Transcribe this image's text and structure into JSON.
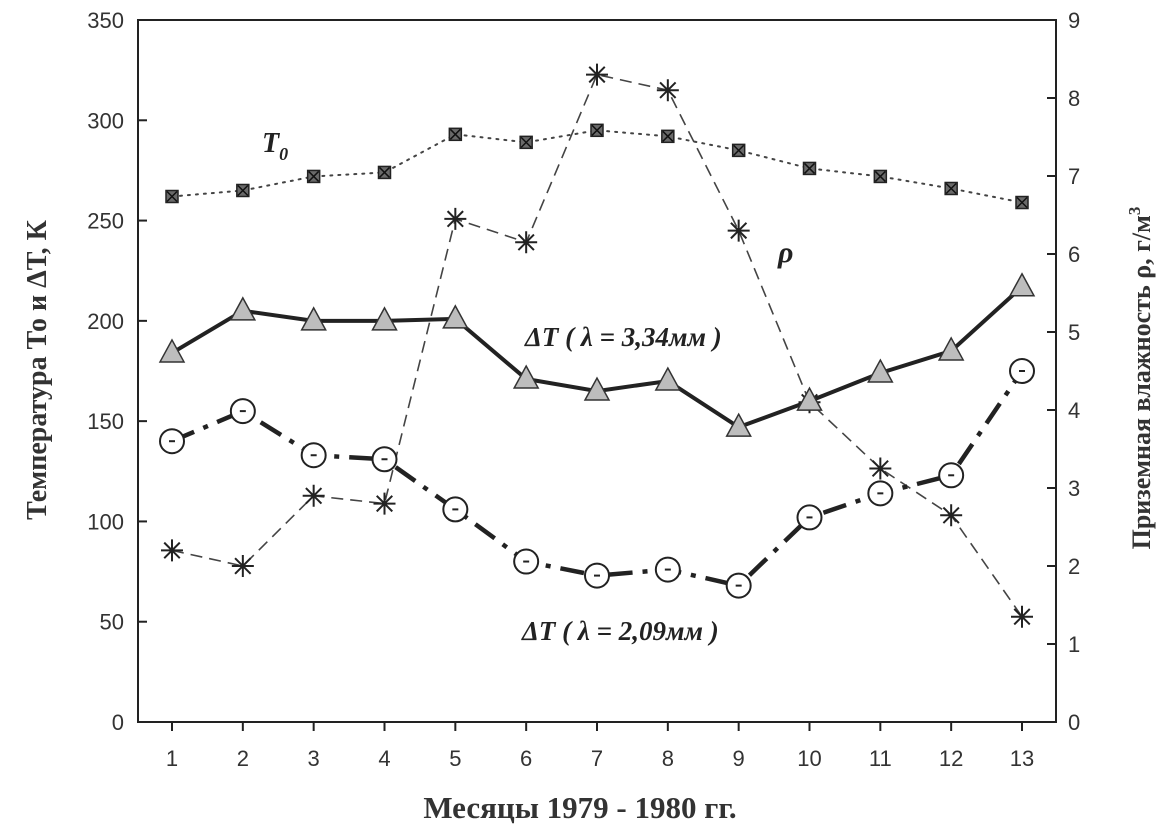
{
  "chart_data": {
    "type": "line",
    "title": "",
    "xlabel": "Месяцы 1979 - 1980 гг.",
    "ylabel_left": "Температура То и  ΔТ, К",
    "ylabel_right_main": "Приземная влажность ρ,  г/м",
    "ylabel_right_sup": "3",
    "x": [
      1,
      2,
      3,
      4,
      5,
      6,
      7,
      8,
      9,
      10,
      11,
      12,
      13
    ],
    "ylim_left": [
      0,
      350
    ],
    "ylim_right": [
      0,
      9
    ],
    "yticks_left": [
      0,
      50,
      100,
      150,
      200,
      250,
      300,
      350
    ],
    "yticks_right": [
      0,
      1,
      2,
      3,
      4,
      5,
      6,
      7,
      8,
      9
    ],
    "grid": false,
    "series": [
      {
        "name": "T0",
        "axis": "left",
        "marker": "square",
        "line": "dotted",
        "values": [
          262,
          265,
          272,
          274,
          293,
          289,
          295,
          292,
          285,
          276,
          272,
          266,
          259
        ]
      },
      {
        "name": "ΔT(λ=3,34мм)",
        "axis": "left",
        "marker": "triangle",
        "line": "solid",
        "values": [
          184,
          205,
          200,
          200,
          201,
          171,
          165,
          170,
          147,
          160,
          174,
          185,
          217
        ]
      },
      {
        "name": "ΔT(λ=2,09мм)",
        "axis": "left",
        "marker": "circle",
        "line": "dashdot",
        "values": [
          140,
          155,
          133,
          131,
          106,
          80,
          73,
          76,
          68,
          102,
          114,
          123,
          175
        ]
      },
      {
        "name": "ρ",
        "axis": "right",
        "marker": "star",
        "line": "dashed",
        "values": [
          2.2,
          2.0,
          2.9,
          2.8,
          6.45,
          6.15,
          8.3,
          8.1,
          6.3,
          4.1,
          3.25,
          2.65,
          1.35
        ]
      }
    ],
    "annotations": {
      "t0_main": "T",
      "t0_sub": "0",
      "rho": "ρ",
      "dt334": "ΔT ( λ = 3,34мм )",
      "dt209": "ΔT ( λ = 2,09мм )"
    }
  }
}
